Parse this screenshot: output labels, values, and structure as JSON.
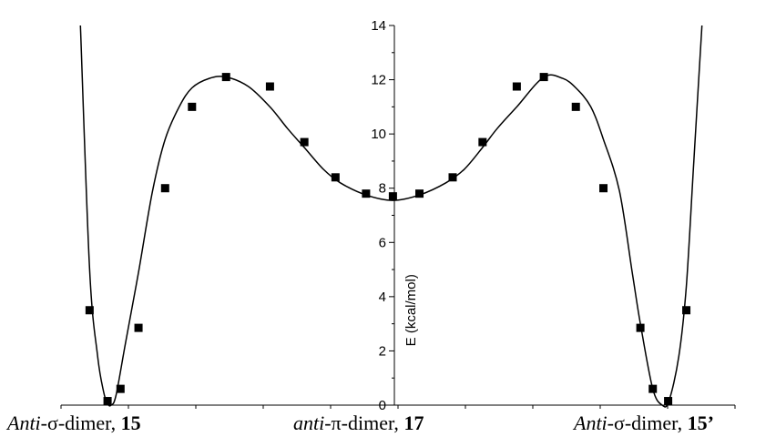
{
  "chart_data": {
    "type": "scatter",
    "ylabel": "E (kcal/mol)",
    "ylim": [
      0,
      14
    ],
    "yticks": [
      0,
      2,
      4,
      6,
      8,
      10,
      12,
      14
    ],
    "xlim": [
      -1,
      1
    ],
    "grid": false,
    "series": [
      {
        "marker": "square",
        "color": "#000000",
        "points": [
          {
            "x": -0.9143,
            "y": 3.5
          },
          {
            "x": -0.8604,
            "y": 0.15
          },
          {
            "x": -0.8216,
            "y": 0.6
          },
          {
            "x": -0.7676,
            "y": 2.85
          },
          {
            "x": -0.6877,
            "y": 8.0
          },
          {
            "x": -0.6071,
            "y": 11.0
          },
          {
            "x": -0.5048,
            "y": 12.1
          },
          {
            "x": -0.3732,
            "y": 11.75
          },
          {
            "x": -0.2701,
            "y": 9.7
          },
          {
            "x": -0.1767,
            "y": 8.4
          },
          {
            "x": -0.085,
            "y": 7.8
          },
          {
            "x": -0.0044,
            "y": 7.7
          },
          {
            "x": 0.0736,
            "y": 7.8
          },
          {
            "x": 0.1711,
            "y": 8.4
          },
          {
            "x": 0.2589,
            "y": 9.7
          },
          {
            "x": 0.3593,
            "y": 11.75
          },
          {
            "x": 0.4388,
            "y": 12.1
          },
          {
            "x": 0.5327,
            "y": 11.0
          },
          {
            "x": 0.6137,
            "y": 8.0
          },
          {
            "x": 0.7222,
            "y": 2.85
          },
          {
            "x": 0.7586,
            "y": 0.6
          },
          {
            "x": 0.8037,
            "y": 0.15
          },
          {
            "x": 0.8571,
            "y": 3.5
          }
        ]
      }
    ],
    "fit_curve": {
      "color": "#000000",
      "points": [
        {
          "x": -0.9417,
          "y": 14.0
        },
        {
          "x": -0.9143,
          "y": 5.0
        },
        {
          "x": -0.8901,
          "y": 1.8
        },
        {
          "x": -0.8725,
          "y": 0.5
        },
        {
          "x": -0.8604,
          "y": 0.05
        },
        {
          "x": -0.8493,
          "y": 0.0
        },
        {
          "x": -0.8353,
          "y": 0.35
        },
        {
          "x": -0.8078,
          "y": 2.2
        },
        {
          "x": -0.7676,
          "y": 4.9
        },
        {
          "x": -0.7254,
          "y": 7.9
        },
        {
          "x": -0.6877,
          "y": 9.8
        },
        {
          "x": -0.6455,
          "y": 11.0
        },
        {
          "x": -0.6071,
          "y": 11.7
        },
        {
          "x": -0.5551,
          "y": 12.05
        },
        {
          "x": -0.5048,
          "y": 12.1
        },
        {
          "x": -0.4381,
          "y": 11.75
        },
        {
          "x": -0.3732,
          "y": 11.0
        },
        {
          "x": -0.3206,
          "y": 10.2
        },
        {
          "x": -0.2701,
          "y": 9.5
        },
        {
          "x": -0.213,
          "y": 8.7
        },
        {
          "x": -0.1623,
          "y": 8.2
        },
        {
          "x": -0.085,
          "y": 7.75
        },
        {
          "x": -0.0044,
          "y": 7.55
        },
        {
          "x": 0.0736,
          "y": 7.75
        },
        {
          "x": 0.1513,
          "y": 8.2
        },
        {
          "x": 0.2053,
          "y": 8.7
        },
        {
          "x": 0.2589,
          "y": 9.5
        },
        {
          "x": 0.3018,
          "y": 10.2
        },
        {
          "x": 0.3593,
          "y": 11.0
        },
        {
          "x": 0.4388,
          "y": 12.1
        },
        {
          "x": 0.494,
          "y": 12.05
        },
        {
          "x": 0.5327,
          "y": 11.7
        },
        {
          "x": 0.5767,
          "y": 11.0
        },
        {
          "x": 0.6137,
          "y": 9.8
        },
        {
          "x": 0.6606,
          "y": 7.9
        },
        {
          "x": 0.6982,
          "y": 4.9
        },
        {
          "x": 0.7222,
          "y": 3.0
        },
        {
          "x": 0.7586,
          "y": 0.6
        },
        {
          "x": 0.7862,
          "y": 0.0
        },
        {
          "x": 0.806,
          "y": 0.15
        },
        {
          "x": 0.8351,
          "y": 1.8
        },
        {
          "x": 0.8571,
          "y": 4.4
        },
        {
          "x": 0.8791,
          "y": 9.0
        },
        {
          "x": 0.9029,
          "y": 14.0
        }
      ]
    },
    "bottom_labels": [
      {
        "italic": "Anti",
        "text": "-σ-dimer, ",
        "bold": "15"
      },
      {
        "italic": "anti",
        "text": "-π-dimer, ",
        "bold": "17"
      },
      {
        "italic": "Anti",
        "text": "-σ-dimer, ",
        "bold": "15’"
      }
    ]
  }
}
